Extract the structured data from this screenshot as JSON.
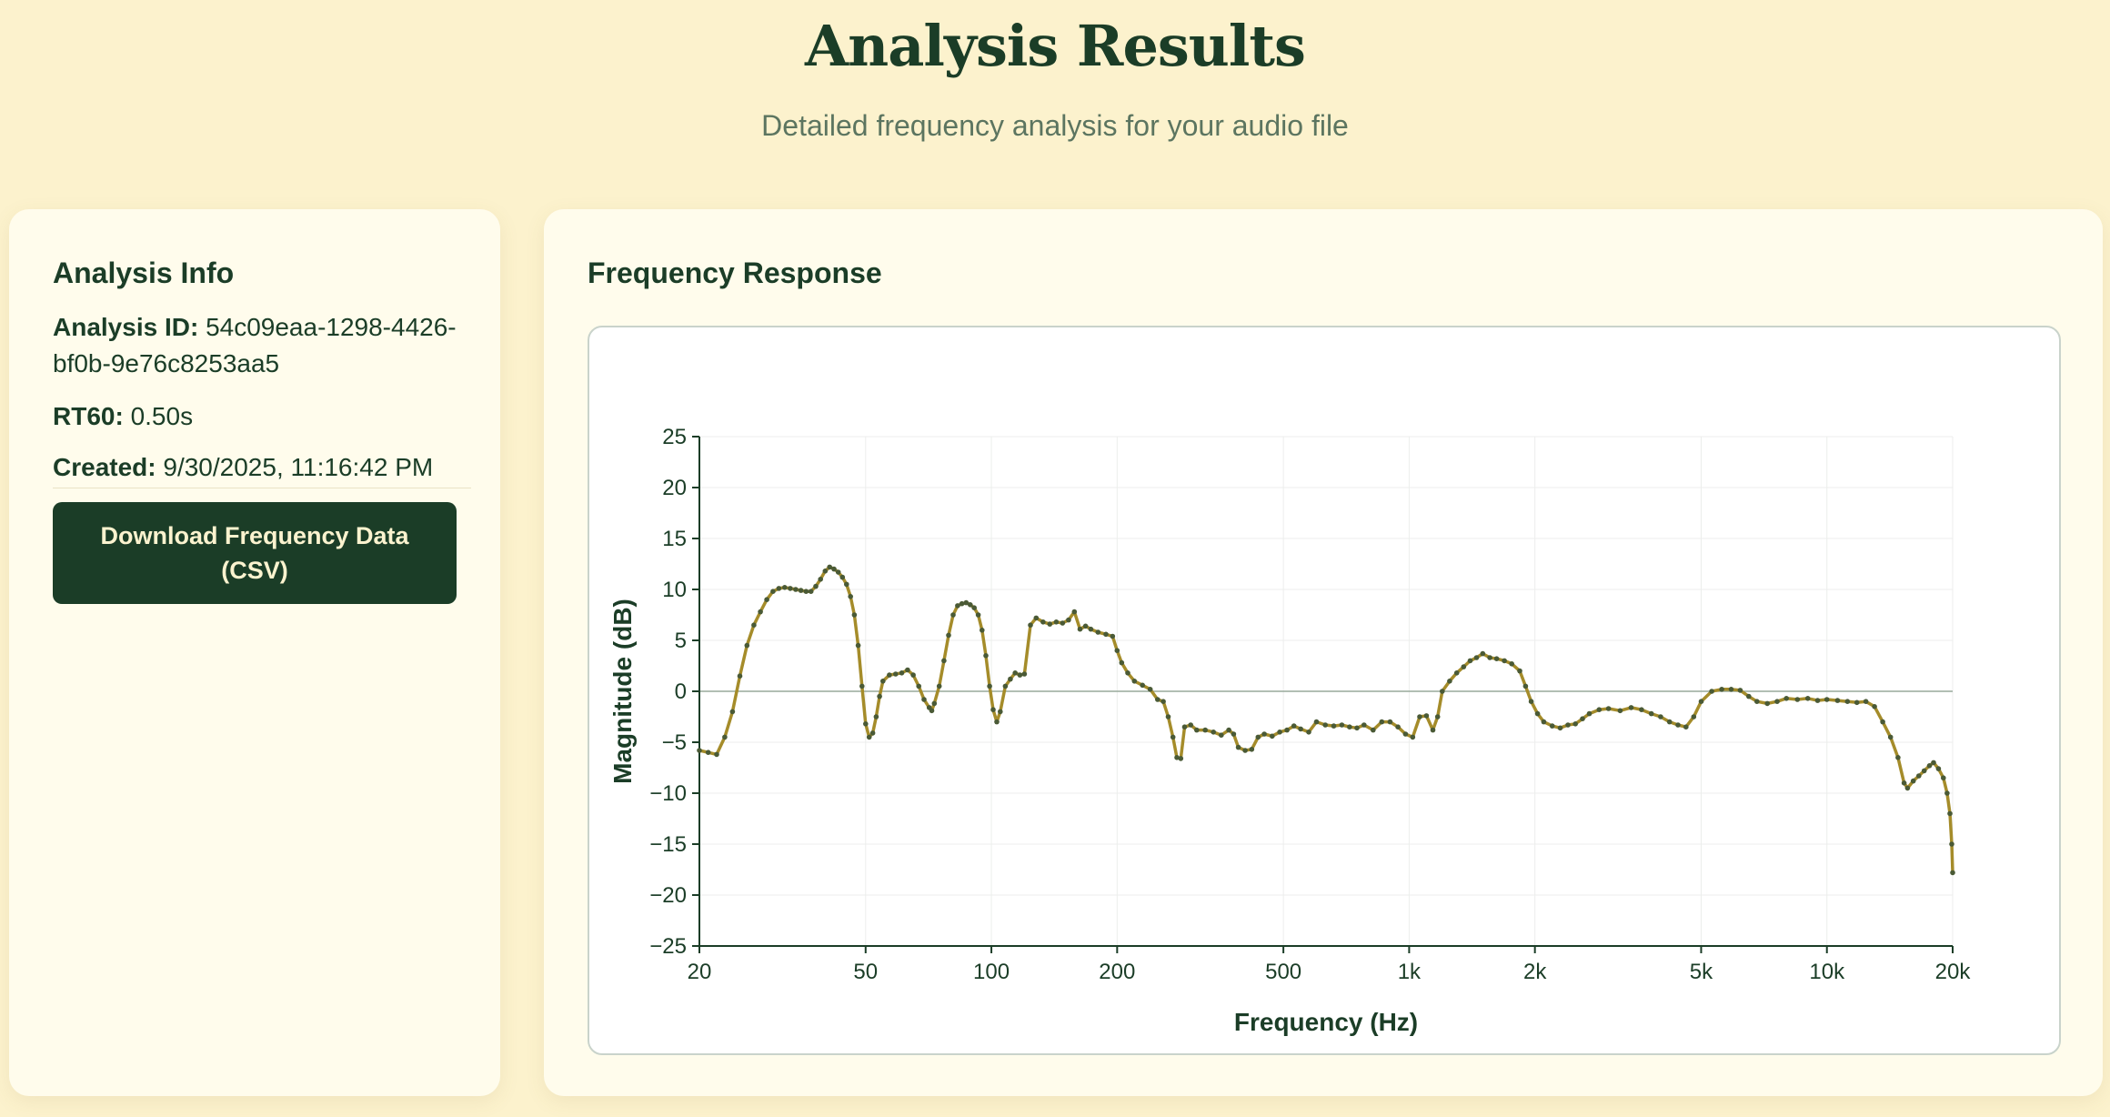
{
  "header": {
    "title": "Analysis Results",
    "subtitle": "Detailed frequency analysis for your audio file"
  },
  "info": {
    "heading": "Analysis Info",
    "id_label": "Analysis ID:",
    "id_value": "54c09eaa-1298-4426-bf0b-9e76c8253aa5",
    "rt60_label": "RT60:",
    "rt60_value": "0.50s",
    "created_label": "Created:",
    "created_value": "9/30/2025, 11:16:42 PM",
    "download_label": "Download Frequency Data (CSV)"
  },
  "chart": {
    "heading": "Frequency Response"
  },
  "colors": {
    "dark_green": "#1b3d27",
    "line": "#a58c2a",
    "marker": "#4a5a36",
    "background": "#fcf2cd"
  },
  "chart_data": {
    "type": "line",
    "title": "",
    "xlabel": "Frequency (Hz)",
    "ylabel": "Magnitude (dB)",
    "xscale": "log",
    "xlim": [
      20,
      20000
    ],
    "ylim": [
      -25,
      25
    ],
    "grid": true,
    "zero_line": true,
    "x_ticks": [
      {
        "value": 20,
        "label": "20"
      },
      {
        "value": 50,
        "label": "50"
      },
      {
        "value": 100,
        "label": "100"
      },
      {
        "value": 200,
        "label": "200"
      },
      {
        "value": 500,
        "label": "500"
      },
      {
        "value": 1000,
        "label": "1k"
      },
      {
        "value": 2000,
        "label": "2k"
      },
      {
        "value": 5000,
        "label": "5k"
      },
      {
        "value": 10000,
        "label": "10k"
      },
      {
        "value": 20000,
        "label": "20k"
      }
    ],
    "y_ticks": [
      25,
      20,
      15,
      10,
      5,
      0,
      -5,
      -10,
      -15,
      -20,
      -25
    ],
    "series": [
      {
        "points": [
          [
            20,
            -5.8
          ],
          [
            21,
            -6.0
          ],
          [
            22,
            -6.2
          ],
          [
            23,
            -4.5
          ],
          [
            24,
            -2.0
          ],
          [
            25,
            1.5
          ],
          [
            26,
            4.5
          ],
          [
            27,
            6.5
          ],
          [
            28,
            7.8
          ],
          [
            29,
            9.0
          ],
          [
            30,
            9.8
          ],
          [
            31,
            10.1
          ],
          [
            32,
            10.2
          ],
          [
            33,
            10.1
          ],
          [
            34,
            10.0
          ],
          [
            35,
            9.9
          ],
          [
            36,
            9.8
          ],
          [
            37,
            9.8
          ],
          [
            38,
            10.3
          ],
          [
            39,
            11.0
          ],
          [
            40,
            11.8
          ],
          [
            41,
            12.2
          ],
          [
            42,
            12.0
          ],
          [
            43,
            11.7
          ],
          [
            44,
            11.2
          ],
          [
            45,
            10.5
          ],
          [
            46,
            9.3
          ],
          [
            47,
            7.5
          ],
          [
            48,
            4.5
          ],
          [
            49,
            0.5
          ],
          [
            50,
            -3.2
          ],
          [
            51,
            -4.5
          ],
          [
            52,
            -4.1
          ],
          [
            53,
            -2.5
          ],
          [
            54,
            -0.5
          ],
          [
            55,
            1.0
          ],
          [
            57,
            1.6
          ],
          [
            59,
            1.7
          ],
          [
            61,
            1.8
          ],
          [
            63,
            2.1
          ],
          [
            65,
            1.6
          ],
          [
            67,
            0.5
          ],
          [
            69,
            -0.8
          ],
          [
            71,
            -1.6
          ],
          [
            72,
            -1.9
          ],
          [
            73,
            -1.2
          ],
          [
            75,
            0.5
          ],
          [
            77,
            3.0
          ],
          [
            79,
            5.5
          ],
          [
            81,
            7.5
          ],
          [
            83,
            8.4
          ],
          [
            85,
            8.6
          ],
          [
            87,
            8.7
          ],
          [
            89,
            8.5
          ],
          [
            91,
            8.2
          ],
          [
            93,
            7.5
          ],
          [
            95,
            6.0
          ],
          [
            97,
            3.5
          ],
          [
            99,
            0.5
          ],
          [
            101,
            -1.8
          ],
          [
            103,
            -3.0
          ],
          [
            105,
            -2.0
          ],
          [
            108,
            0.5
          ],
          [
            111,
            1.2
          ],
          [
            114,
            1.8
          ],
          [
            117,
            1.6
          ],
          [
            120,
            1.7
          ],
          [
            124,
            6.5
          ],
          [
            128,
            7.2
          ],
          [
            133,
            6.8
          ],
          [
            138,
            6.6
          ],
          [
            143,
            6.8
          ],
          [
            148,
            6.7
          ],
          [
            153,
            7.0
          ],
          [
            158,
            7.8
          ],
          [
            163,
            6.1
          ],
          [
            168,
            6.4
          ],
          [
            173,
            6.1
          ],
          [
            180,
            5.8
          ],
          [
            188,
            5.6
          ],
          [
            195,
            5.4
          ],
          [
            200,
            4.0
          ],
          [
            205,
            2.8
          ],
          [
            212,
            1.8
          ],
          [
            220,
            1.0
          ],
          [
            230,
            0.6
          ],
          [
            240,
            0.2
          ],
          [
            250,
            -0.8
          ],
          [
            258,
            -1.0
          ],
          [
            265,
            -2.5
          ],
          [
            272,
            -4.5
          ],
          [
            278,
            -6.5
          ],
          [
            284,
            -6.6
          ],
          [
            290,
            -3.5
          ],
          [
            300,
            -3.3
          ],
          [
            310,
            -3.8
          ],
          [
            325,
            -3.8
          ],
          [
            340,
            -4.0
          ],
          [
            355,
            -4.3
          ],
          [
            370,
            -3.8
          ],
          [
            380,
            -4.2
          ],
          [
            390,
            -5.5
          ],
          [
            405,
            -5.8
          ],
          [
            420,
            -5.7
          ],
          [
            435,
            -4.5
          ],
          [
            450,
            -4.2
          ],
          [
            470,
            -4.4
          ],
          [
            490,
            -4.0
          ],
          [
            510,
            -3.8
          ],
          [
            530,
            -3.4
          ],
          [
            550,
            -3.7
          ],
          [
            575,
            -4.0
          ],
          [
            600,
            -3.0
          ],
          [
            630,
            -3.3
          ],
          [
            660,
            -3.4
          ],
          [
            690,
            -3.3
          ],
          [
            720,
            -3.5
          ],
          [
            750,
            -3.6
          ],
          [
            780,
            -3.3
          ],
          [
            820,
            -3.8
          ],
          [
            860,
            -3.0
          ],
          [
            900,
            -3.0
          ],
          [
            940,
            -3.5
          ],
          [
            980,
            -4.2
          ],
          [
            1020,
            -4.5
          ],
          [
            1060,
            -2.5
          ],
          [
            1100,
            -2.4
          ],
          [
            1140,
            -3.8
          ],
          [
            1170,
            -2.5
          ],
          [
            1200,
            0.0
          ],
          [
            1250,
            1.0
          ],
          [
            1300,
            1.8
          ],
          [
            1350,
            2.4
          ],
          [
            1400,
            3.0
          ],
          [
            1450,
            3.3
          ],
          [
            1500,
            3.7
          ],
          [
            1560,
            3.3
          ],
          [
            1620,
            3.2
          ],
          [
            1690,
            3.0
          ],
          [
            1760,
            2.7
          ],
          [
            1840,
            2.0
          ],
          [
            1900,
            0.5
          ],
          [
            1960,
            -1.0
          ],
          [
            2030,
            -2.2
          ],
          [
            2100,
            -3.0
          ],
          [
            2200,
            -3.4
          ],
          [
            2300,
            -3.6
          ],
          [
            2400,
            -3.3
          ],
          [
            2500,
            -3.2
          ],
          [
            2600,
            -2.7
          ],
          [
            2700,
            -2.2
          ],
          [
            2850,
            -1.8
          ],
          [
            3000,
            -1.7
          ],
          [
            3200,
            -1.9
          ],
          [
            3400,
            -1.6
          ],
          [
            3600,
            -1.8
          ],
          [
            3800,
            -2.2
          ],
          [
            4000,
            -2.5
          ],
          [
            4200,
            -3.0
          ],
          [
            4400,
            -3.3
          ],
          [
            4600,
            -3.5
          ],
          [
            4800,
            -2.5
          ],
          [
            5000,
            -1.0
          ],
          [
            5300,
            0.0
          ],
          [
            5600,
            0.2
          ],
          [
            5900,
            0.2
          ],
          [
            6200,
            0.1
          ],
          [
            6500,
            -0.5
          ],
          [
            6800,
            -1.0
          ],
          [
            7200,
            -1.2
          ],
          [
            7600,
            -1.0
          ],
          [
            8000,
            -0.7
          ],
          [
            8500,
            -0.8
          ],
          [
            9000,
            -0.7
          ],
          [
            9500,
            -0.9
          ],
          [
            10000,
            -0.8
          ],
          [
            10600,
            -0.9
          ],
          [
            11200,
            -1.0
          ],
          [
            11800,
            -1.1
          ],
          [
            12400,
            -1.0
          ],
          [
            13000,
            -1.5
          ],
          [
            13600,
            -3.0
          ],
          [
            14200,
            -4.5
          ],
          [
            14800,
            -6.5
          ],
          [
            15300,
            -9.0
          ],
          [
            15600,
            -9.5
          ],
          [
            16100,
            -8.8
          ],
          [
            16600,
            -8.3
          ],
          [
            17100,
            -7.8
          ],
          [
            17600,
            -7.3
          ],
          [
            18000,
            -7.0
          ],
          [
            18500,
            -7.6
          ],
          [
            19000,
            -8.5
          ],
          [
            19400,
            -10.0
          ],
          [
            19700,
            -12.0
          ],
          [
            19900,
            -15.0
          ],
          [
            20000,
            -17.8
          ]
        ]
      }
    ]
  }
}
